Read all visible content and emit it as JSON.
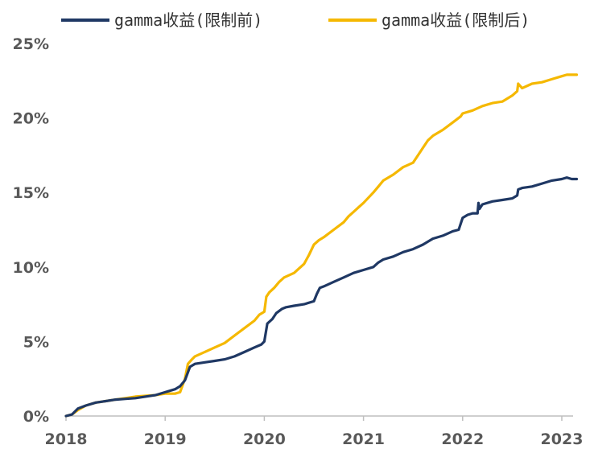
{
  "chart_data": {
    "type": "line",
    "title": "",
    "xlabel": "",
    "ylabel": "",
    "xlim": [
      2018.0,
      2023.15
    ],
    "ylim": [
      0,
      25
    ],
    "y_ticks": [
      0,
      5,
      10,
      15,
      20,
      25
    ],
    "y_tick_labels": [
      "0%",
      "5%",
      "10%",
      "15%",
      "20%",
      "25%"
    ],
    "x_ticks": [
      2018,
      2019,
      2020,
      2021,
      2022,
      2023
    ],
    "x_tick_labels": [
      "2018",
      "2019",
      "2020",
      "2021",
      "2022",
      "2023"
    ],
    "grid": false,
    "legend_position": "top",
    "series": [
      {
        "name": "gamma收益(限制前)",
        "color": "#1f3864",
        "x": [
          2018.0,
          2018.06,
          2018.12,
          2018.2,
          2018.3,
          2018.4,
          2018.5,
          2018.6,
          2018.7,
          2018.8,
          2018.9,
          2019.0,
          2019.1,
          2019.15,
          2019.2,
          2019.25,
          2019.3,
          2019.4,
          2019.5,
          2019.6,
          2019.7,
          2019.8,
          2019.9,
          2019.97,
          2020.0,
          2020.03,
          2020.08,
          2020.12,
          2020.18,
          2020.22,
          2020.3,
          2020.4,
          2020.5,
          2020.53,
          2020.56,
          2020.6,
          2020.7,
          2020.8,
          2020.9,
          2021.0,
          2021.1,
          2021.15,
          2021.2,
          2021.3,
          2021.4,
          2021.5,
          2021.6,
          2021.65,
          2021.7,
          2021.8,
          2021.9,
          2021.96,
          2022.0,
          2022.05,
          2022.1,
          2022.15,
          2022.16,
          2022.17,
          2022.2,
          2022.3,
          2022.4,
          2022.5,
          2022.55,
          2022.56,
          2022.6,
          2022.7,
          2022.8,
          2022.9,
          2023.0,
          2023.05,
          2023.1,
          2023.15
        ],
        "values": [
          0.0,
          0.1,
          0.5,
          0.7,
          0.9,
          1.0,
          1.1,
          1.15,
          1.2,
          1.3,
          1.4,
          1.6,
          1.8,
          2.0,
          2.4,
          3.3,
          3.5,
          3.6,
          3.7,
          3.8,
          4.0,
          4.3,
          4.6,
          4.8,
          5.0,
          6.2,
          6.5,
          6.9,
          7.2,
          7.3,
          7.4,
          7.5,
          7.7,
          8.2,
          8.6,
          8.7,
          9.0,
          9.3,
          9.6,
          9.8,
          10.0,
          10.3,
          10.5,
          10.7,
          11.0,
          11.2,
          11.5,
          11.7,
          11.9,
          12.1,
          12.4,
          12.5,
          13.3,
          13.5,
          13.6,
          13.6,
          14.3,
          13.9,
          14.2,
          14.4,
          14.5,
          14.6,
          14.8,
          15.2,
          15.3,
          15.4,
          15.6,
          15.8,
          15.9,
          16.0,
          15.9,
          15.9
        ]
      },
      {
        "name": "gamma收益(限制后)",
        "color": "#f5b800",
        "x": [
          2018.0,
          2018.06,
          2018.12,
          2018.2,
          2018.3,
          2018.4,
          2018.5,
          2018.6,
          2018.7,
          2018.8,
          2018.9,
          2019.0,
          2019.1,
          2019.15,
          2019.2,
          2019.23,
          2019.27,
          2019.3,
          2019.4,
          2019.5,
          2019.6,
          2019.7,
          2019.8,
          2019.9,
          2019.95,
          2020.0,
          2020.02,
          2020.05,
          2020.1,
          2020.15,
          2020.2,
          2020.3,
          2020.4,
          2020.45,
          2020.5,
          2020.55,
          2020.6,
          2020.7,
          2020.8,
          2020.85,
          2020.9,
          2020.95,
          2021.0,
          2021.1,
          2021.15,
          2021.2,
          2021.3,
          2021.4,
          2021.5,
          2021.55,
          2021.6,
          2021.65,
          2021.7,
          2021.8,
          2021.9,
          2021.98,
          2022.0,
          2022.1,
          2022.2,
          2022.3,
          2022.4,
          2022.5,
          2022.55,
          2022.56,
          2022.6,
          2022.7,
          2022.8,
          2022.9,
          2023.0,
          2023.05,
          2023.1,
          2023.15
        ],
        "values": [
          0.0,
          0.1,
          0.4,
          0.7,
          0.9,
          1.0,
          1.1,
          1.2,
          1.3,
          1.35,
          1.4,
          1.5,
          1.5,
          1.6,
          2.5,
          3.5,
          3.8,
          4.0,
          4.3,
          4.6,
          4.9,
          5.4,
          5.9,
          6.4,
          6.8,
          7.0,
          8.0,
          8.3,
          8.6,
          9.0,
          9.3,
          9.6,
          10.2,
          10.8,
          11.5,
          11.8,
          12.0,
          12.5,
          13.0,
          13.4,
          13.7,
          14.0,
          14.3,
          15.0,
          15.4,
          15.8,
          16.2,
          16.7,
          17.0,
          17.5,
          18.0,
          18.5,
          18.8,
          19.2,
          19.7,
          20.1,
          20.3,
          20.5,
          20.8,
          21.0,
          21.1,
          21.5,
          21.8,
          22.3,
          22.0,
          22.3,
          22.4,
          22.6,
          22.8,
          22.9,
          22.9,
          22.9
        ]
      }
    ]
  }
}
